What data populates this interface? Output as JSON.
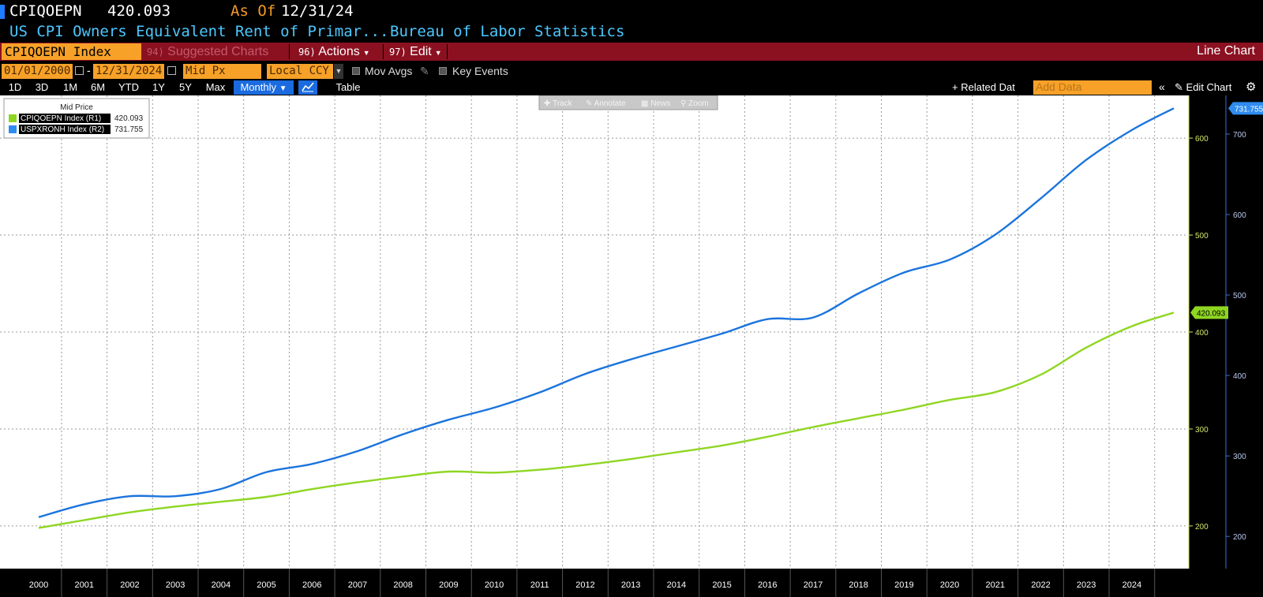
{
  "header": {
    "ticker": "CPIQOEPN",
    "price": "420.093",
    "as_of_label": "As Of",
    "as_of_date": "12/31/24",
    "description": "US CPI Owners Equivalent Rent of Primar...",
    "source": "Bureau of Labor Statistics"
  },
  "menu": {
    "security": "CPIQOEPN Index",
    "suggested_num": "94)",
    "suggested_label": "Suggested Charts",
    "actions_num": "96)",
    "actions_label": "Actions",
    "edit_num": "97)",
    "edit_label": "Edit",
    "chart_type": "Line Chart"
  },
  "controls": {
    "start_date": "01/01/2000",
    "end_date": "12/31/2024",
    "price_field": "Mid Px",
    "currency": "Local CCY",
    "mov_avgs": "Mov Avgs",
    "key_events": "Key Events"
  },
  "toolbar": {
    "periods": [
      "1D",
      "3D",
      "1M",
      "6M",
      "YTD",
      "1Y",
      "5Y",
      "Max"
    ],
    "frequency": "Monthly",
    "table": "Table",
    "related": "+ Related Dat",
    "add_data_placeholder": "Add Data",
    "edit_chart": "Edit Chart"
  },
  "chart_tools": [
    "Track",
    "Annotate",
    "News",
    "Zoom"
  ],
  "legend": {
    "title": "Mid Price",
    "items": [
      {
        "label": "CPIQOEPN Index  (R1)",
        "value": "420.093",
        "color": "#8fd622"
      },
      {
        "label": "USPXRONH Index  (R2)",
        "value": "731.755",
        "color": "#2f8cf0"
      }
    ]
  },
  "colors": {
    "green": "#8fd622",
    "blue": "#1b74dd",
    "accent_orange": "#f7a128",
    "menu_bar": "#8b1121"
  },
  "chart_data": {
    "type": "line",
    "x_axis_labels": [
      "2000",
      "2001",
      "2002",
      "2003",
      "2004",
      "2005",
      "2006",
      "2007",
      "2008",
      "2009",
      "2010",
      "2011",
      "2012",
      "2013",
      "2014",
      "2015",
      "2016",
      "2017",
      "2018",
      "2019",
      "2020",
      "2021",
      "2022",
      "2023",
      "2024"
    ],
    "r1_ticks": [
      "200",
      "300",
      "400",
      "500",
      "600"
    ],
    "r2_ticks": [
      "200",
      "300",
      "400",
      "500",
      "600",
      "700"
    ],
    "r1_range": [
      156,
      644
    ],
    "r2_range": [
      160,
      748
    ],
    "series": [
      {
        "name": "CPIQOEPN Index (R1)",
        "axis": "R1",
        "last_value": "420.093",
        "x": [
          2000,
          2001,
          2002,
          2003,
          2004,
          2005,
          2006,
          2007,
          2008,
          2009,
          2010,
          2011,
          2012,
          2013,
          2014,
          2015,
          2016,
          2017,
          2018,
          2019,
          2020,
          2021,
          2022,
          2023,
          2024,
          2024.92
        ],
        "y": [
          198,
          206,
          214,
          220,
          225,
          230,
          238,
          245,
          251,
          256,
          255,
          258,
          263,
          269,
          276,
          283,
          292,
          302,
          311,
          320,
          330,
          338,
          356,
          384,
          406,
          420
        ]
      },
      {
        "name": "USPXRONH Index (R2)",
        "axis": "R2",
        "last_value": "731.755",
        "x": [
          2000,
          2001,
          2002,
          2003,
          2004,
          2005,
          2006,
          2007,
          2008,
          2009,
          2010,
          2011,
          2012,
          2013,
          2014,
          2015,
          2016,
          2017,
          2018,
          2019,
          2020,
          2021,
          2022,
          2023,
          2024,
          2024.92
        ],
        "y": [
          224,
          240,
          250,
          250,
          259,
          280,
          290,
          306,
          327,
          345,
          360,
          379,
          402,
          420,
          436,
          452,
          470,
          472,
          502,
          528,
          544,
          575,
          620,
          668,
          705,
          732
        ]
      }
    ]
  }
}
